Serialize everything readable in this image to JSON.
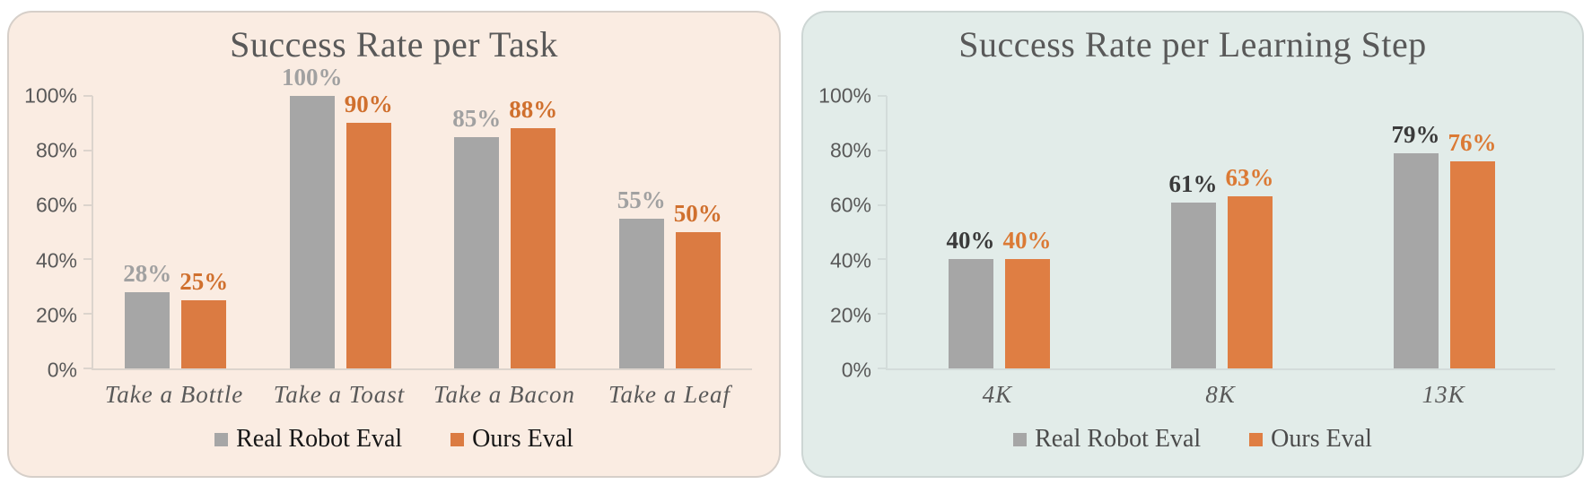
{
  "page": {
    "background": "#FFFFFF"
  },
  "chart_data": [
    {
      "type": "bar",
      "slug": "success-rate-per-task",
      "title": "Success Rate per Task",
      "xlabel": "",
      "ylabel": "",
      "ylim": [
        0,
        100
      ],
      "grid": false,
      "legend_position": "bottom",
      "value_suffix": "%",
      "categories": [
        "Take a Bottle",
        "Take a Toast",
        "Take a Bacon",
        "Take a Leaf"
      ],
      "series": [
        {
          "name": "Real Robot Eval",
          "color": "#A6A6A6",
          "label_color": "#A1A1A1",
          "values": [
            28,
            100,
            85,
            55
          ],
          "value_labels": [
            "28%",
            "100%",
            "85%",
            "55%"
          ]
        },
        {
          "name": "Ours Eval",
          "color": "#DB7B42",
          "label_color": "#D0702E",
          "values": [
            25,
            90,
            88,
            50
          ],
          "value_labels": [
            "25%",
            "90%",
            "88%",
            "50%"
          ]
        }
      ],
      "y_ticks": [
        {
          "value": 100,
          "label": "100%"
        },
        {
          "value": 80,
          "label": "80%"
        },
        {
          "value": 60,
          "label": "60%"
        },
        {
          "value": 40,
          "label": "40%"
        },
        {
          "value": 20,
          "label": "20%"
        },
        {
          "value": 0,
          "label": "0%"
        }
      ],
      "panel_bg": "#FAECE2",
      "panel_border": "#D6CFC9",
      "axis_color": "#DCD4CD",
      "title_color": "#595959",
      "tick_label_color": "#595959",
      "category_label_color": "#595959",
      "legend_text_color": "#161616"
    },
    {
      "type": "bar",
      "slug": "success-rate-per-learning-step",
      "title": "Success Rate per Learning Step",
      "xlabel": "",
      "ylabel": "",
      "ylim": [
        0,
        100
      ],
      "grid": false,
      "legend_position": "bottom",
      "value_suffix": "%",
      "categories": [
        "4K",
        "8K",
        "13K"
      ],
      "series": [
        {
          "name": "Real Robot Eval",
          "color": "#A6A6A6",
          "label_color": "#3A3A3A",
          "values": [
            40,
            61,
            79
          ],
          "value_labels": [
            "40%",
            "61%",
            "79%"
          ]
        },
        {
          "name": "Ours Eval",
          "color": "#DF7E43",
          "label_color": "#DB7A35",
          "values": [
            40,
            63,
            76
          ],
          "value_labels": [
            "40%",
            "63%",
            "76%"
          ]
        }
      ],
      "y_ticks": [
        {
          "value": 100,
          "label": "100%"
        },
        {
          "value": 80,
          "label": "80%"
        },
        {
          "value": 60,
          "label": "60%"
        },
        {
          "value": 40,
          "label": "40%"
        },
        {
          "value": 20,
          "label": "20%"
        },
        {
          "value": 0,
          "label": "0%"
        }
      ],
      "panel_bg": "#E2ECE9",
      "panel_border": "#CDD6D4",
      "axis_color": "#D3DCDA",
      "title_color": "#595959",
      "tick_label_color": "#595959",
      "category_label_color": "#595959",
      "legend_text_color": "#4B4B4B"
    }
  ]
}
